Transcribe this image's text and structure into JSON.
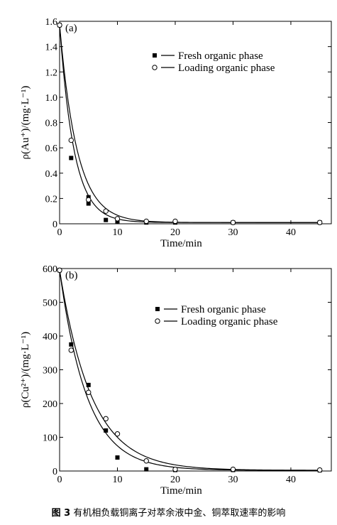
{
  "chart_data": [
    {
      "type": "scatter",
      "panel_label": "(a)",
      "xlabel": "Time/min",
      "ylabel": "ρ(Au⁺)/(mg·L⁻¹)",
      "xlim": [
        0,
        47
      ],
      "ylim": [
        0,
        1.6
      ],
      "xticks": [
        0,
        10,
        20,
        30,
        40
      ],
      "xtick_labels": [
        "0",
        "10",
        "20",
        "30",
        "40"
      ],
      "yticks": [
        0,
        0.2,
        0.4,
        0.6,
        0.8,
        1.0,
        1.2,
        1.4,
        1.6
      ],
      "ytick_labels": [
        "0",
        "0.2",
        "0.4",
        "0.6",
        "0.8",
        "1.0",
        "1.2",
        "1.4",
        "1.6"
      ],
      "legend_position": "top-right",
      "grid": false,
      "series": [
        {
          "name": "Fresh organic phase",
          "marker": "filled-square",
          "x": [
            0,
            2,
            5,
            8,
            10,
            15,
            20,
            30,
            45
          ],
          "y": [
            1.57,
            0.52,
            0.16,
            0.03,
            0.02,
            0.01,
            0.01,
            0.01,
            0.01
          ],
          "extra_points": [
            [
              5,
              0.21
            ]
          ],
          "fit": {
            "a": 1.57,
            "k": 0.4,
            "c": 0.01
          }
        },
        {
          "name": "Loading organic phase",
          "marker": "open-circle",
          "x": [
            0,
            2,
            5,
            8,
            10,
            15,
            20,
            30,
            45
          ],
          "y": [
            1.57,
            0.66,
            0.19,
            0.1,
            0.04,
            0.02,
            0.02,
            0.01,
            0.01
          ],
          "fit": {
            "a": 1.57,
            "k": 0.33,
            "c": 0.01
          }
        }
      ]
    },
    {
      "type": "scatter",
      "panel_label": "(b)",
      "xlabel": "Time/min",
      "ylabel": "ρ(Cu²⁺)/(mg·L⁻¹)",
      "xlim": [
        0,
        47
      ],
      "ylim": [
        0,
        600
      ],
      "xticks": [
        0,
        10,
        20,
        30,
        40
      ],
      "xtick_labels": [
        "0",
        "10",
        "20",
        "30",
        "40"
      ],
      "yticks": [
        0,
        100,
        200,
        300,
        400,
        500,
        600
      ],
      "ytick_labels": [
        "0",
        "100",
        "200",
        "300",
        "400",
        "500",
        "600"
      ],
      "legend_position": "top-right",
      "grid": false,
      "series": [
        {
          "name": "Fresh organic phase",
          "marker": "filled-square",
          "x": [
            0,
            2,
            5,
            8,
            10,
            15,
            20,
            30,
            45
          ],
          "y": [
            595,
            375,
            255,
            120,
            40,
            5,
            3,
            3,
            2
          ],
          "fit": {
            "a": 595,
            "k": 0.21,
            "c": 2
          }
        },
        {
          "name": "Loading organic phase",
          "marker": "open-circle",
          "x": [
            0,
            2,
            5,
            8,
            10,
            15,
            20,
            30,
            45
          ],
          "y": [
            595,
            358,
            233,
            155,
            110,
            30,
            5,
            5,
            3
          ],
          "fit": {
            "a": 595,
            "k": 0.18,
            "c": 2
          }
        }
      ]
    }
  ],
  "caption": {
    "number": "图 3",
    "text": "有机相负载铜离子对萃余液中金、铜萃取速率的影响"
  }
}
